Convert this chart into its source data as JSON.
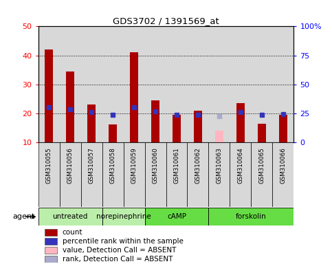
{
  "title": "GDS3702 / 1391569_at",
  "samples": [
    "GSM310055",
    "GSM310056",
    "GSM310057",
    "GSM310058",
    "GSM310059",
    "GSM310060",
    "GSM310061",
    "GSM310062",
    "GSM310063",
    "GSM310064",
    "GSM310065",
    "GSM310066"
  ],
  "counts": [
    42,
    34.5,
    23,
    16.2,
    41,
    24.5,
    19.5,
    21,
    null,
    23.5,
    16.5,
    19.5
  ],
  "absent_counts": [
    null,
    null,
    null,
    null,
    null,
    null,
    null,
    null,
    14,
    null,
    null,
    null
  ],
  "percentile_ranks": [
    30.5,
    28.5,
    26,
    24,
    30.5,
    27,
    24,
    24,
    null,
    26,
    24,
    24.5
  ],
  "absent_ranks": [
    null,
    null,
    null,
    null,
    null,
    null,
    null,
    null,
    22.5,
    null,
    null,
    null
  ],
  "bar_color": "#AA0000",
  "absent_bar_color": "#FFB6C1",
  "dot_color": "#3333BB",
  "absent_dot_color": "#AAAACC",
  "ylim_left": [
    10,
    50
  ],
  "ylim_right": [
    0,
    100
  ],
  "yticks_left": [
    10,
    20,
    30,
    40,
    50
  ],
  "ytick_labels_left": [
    "10",
    "20",
    "30",
    "40",
    "50"
  ],
  "yticks_right": [
    0,
    25,
    50,
    75,
    100
  ],
  "ytick_labels_right": [
    "0",
    "25",
    "50",
    "75",
    "100%"
  ],
  "group_boundaries": [
    {
      "start": 0,
      "end": 3,
      "label": "untreated",
      "color": "#BBEEAA"
    },
    {
      "start": 3,
      "end": 5,
      "label": "norepinephrine",
      "color": "#BBEEAA"
    },
    {
      "start": 5,
      "end": 8,
      "label": "cAMP",
      "color": "#66DD44"
    },
    {
      "start": 8,
      "end": 12,
      "label": "forskolin",
      "color": "#66DD44"
    }
  ],
  "bg_color": "#D8D8D8",
  "plot_bg": "#FFFFFF",
  "legend_items": [
    {
      "color": "#AA0000",
      "label": "count"
    },
    {
      "color": "#3333BB",
      "label": "percentile rank within the sample"
    },
    {
      "color": "#FFB6C1",
      "label": "value, Detection Call = ABSENT"
    },
    {
      "color": "#AAAACC",
      "label": "rank, Detection Call = ABSENT"
    }
  ],
  "hgrid_at": [
    20,
    30,
    40
  ],
  "bar_width": 0.4,
  "dot_size": 5
}
